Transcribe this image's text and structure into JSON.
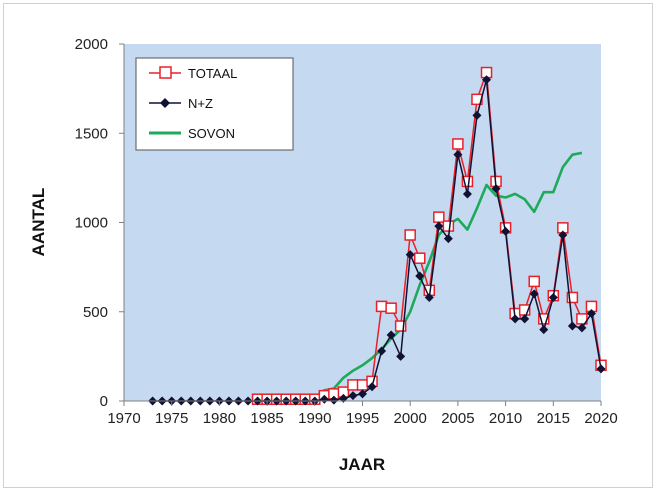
{
  "chart_data": {
    "type": "line",
    "title": "",
    "xlabel": "JAAR",
    "ylabel": "AANTAL",
    "xlim": [
      1970,
      2020
    ],
    "ylim": [
      0,
      2000
    ],
    "x_ticks": [
      "1970",
      "1975",
      "1980",
      "1985",
      "1990",
      "1995",
      "2000",
      "2005",
      "2010",
      "2015",
      "2020"
    ],
    "y_ticks": [
      "0",
      "500",
      "1000",
      "1500",
      "2000"
    ],
    "plot_background": "#c5d9f1",
    "legend_position": "top-left",
    "grid": false,
    "series": [
      {
        "name": "TOTAAL",
        "color": "#e8202a",
        "marker": "open-square",
        "x": [
          1984,
          1985,
          1986,
          1987,
          1988,
          1989,
          1990,
          1991,
          1992,
          1993,
          1994,
          1995,
          1996,
          1997,
          1998,
          1999,
          2000,
          2001,
          2002,
          2003,
          2004,
          2005,
          2006,
          2007,
          2008,
          2009,
          2010,
          2011,
          2012,
          2013,
          2014,
          2015,
          2016,
          2017,
          2018,
          2019,
          2020
        ],
        "values": [
          10,
          10,
          10,
          10,
          10,
          10,
          10,
          30,
          40,
          50,
          90,
          90,
          110,
          530,
          520,
          420,
          930,
          800,
          620,
          1030,
          980,
          1440,
          1230,
          1690,
          1840,
          1230,
          970,
          490,
          510,
          670,
          460,
          590,
          970,
          580,
          460,
          530,
          200
        ]
      },
      {
        "name": "N+Z",
        "color": "#111133",
        "marker": "filled-diamond",
        "x": [
          1973,
          1974,
          1975,
          1976,
          1977,
          1978,
          1979,
          1980,
          1981,
          1982,
          1983,
          1984,
          1985,
          1986,
          1987,
          1988,
          1989,
          1990,
          1991,
          1992,
          1993,
          1994,
          1995,
          1996,
          1997,
          1998,
          1999,
          2000,
          2001,
          2002,
          2003,
          2004,
          2005,
          2006,
          2007,
          2008,
          2009,
          2010,
          2011,
          2012,
          2013,
          2014,
          2015,
          2016,
          2017,
          2018,
          2019,
          2020
        ],
        "values": [
          0,
          0,
          0,
          0,
          0,
          0,
          0,
          0,
          0,
          0,
          0,
          0,
          0,
          0,
          0,
          0,
          0,
          0,
          10,
          5,
          15,
          30,
          40,
          80,
          280,
          370,
          250,
          820,
          700,
          580,
          980,
          910,
          1380,
          1160,
          1600,
          1800,
          1190,
          950,
          460,
          460,
          600,
          400,
          580,
          930,
          420,
          410,
          490,
          180
        ]
      },
      {
        "name": "SOVON",
        "color": "#1daa5a",
        "marker": "none",
        "x": [
          1990,
          1991,
          1992,
          1993,
          1994,
          1995,
          1996,
          1997,
          1998,
          1999,
          2000,
          2001,
          2002,
          2003,
          2004,
          2005,
          2006,
          2007,
          2008,
          2009,
          2010,
          2011,
          2012,
          2013,
          2014,
          2015,
          2016,
          2017,
          2018
        ],
        "values": [
          20,
          60,
          70,
          130,
          170,
          200,
          240,
          290,
          350,
          400,
          500,
          650,
          780,
          930,
          990,
          1020,
          960,
          1080,
          1210,
          1150,
          1140,
          1160,
          1130,
          1060,
          1170,
          1170,
          1310,
          1380,
          1390
        ]
      }
    ]
  }
}
